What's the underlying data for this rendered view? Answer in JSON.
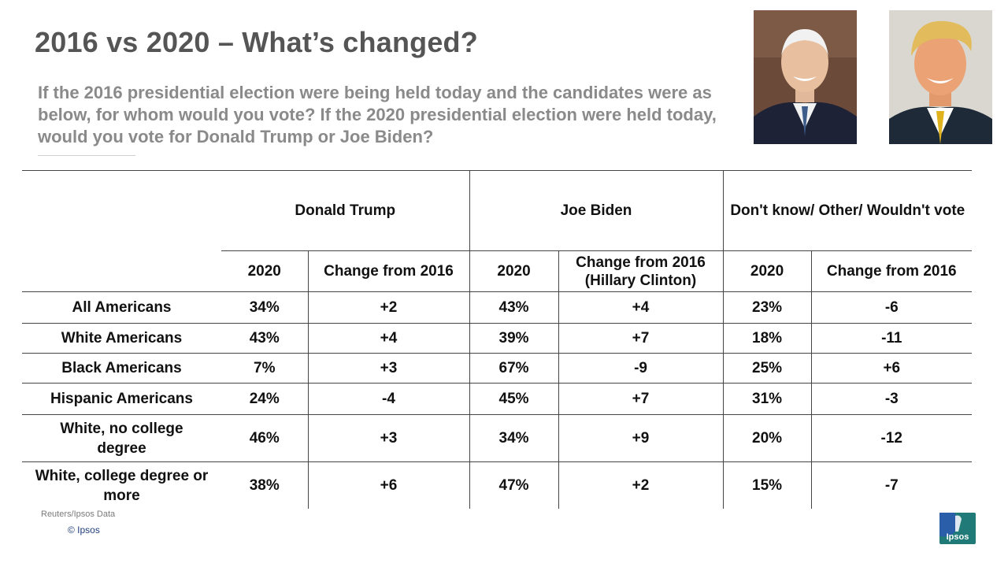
{
  "title": "2016 vs 2020 – What’s changed?",
  "subtitle": "If the 2016 presidential election were being held today and the candidates were as below, for whom would you vote? If the 2020 presidential election were held today, would you vote for Donald Trump or Joe Biden?",
  "photos": {
    "left_icon": "joe-biden-photo",
    "right_icon": "donald-trump-photo"
  },
  "table": {
    "groups": [
      "Donald Trump",
      "Joe Biden",
      "Don't know/ Other/ Wouldn't vote"
    ],
    "subheaders": [
      "2020",
      "Change from 2016",
      "2020",
      "Change from 2016 (Hillary  Clinton)",
      "2020",
      "Change from 2016"
    ],
    "rows": [
      {
        "label": "All Americans",
        "values": [
          "34%",
          "+2",
          "43%",
          "+4",
          "23%",
          "-6"
        ]
      },
      {
        "label": "White Americans",
        "values": [
          "43%",
          "+4",
          "39%",
          "+7",
          "18%",
          "-11"
        ]
      },
      {
        "label": "Black Americans",
        "values": [
          "7%",
          "+3",
          "67%",
          "-9",
          "25%",
          "+6"
        ]
      },
      {
        "label": "Hispanic Americans",
        "values": [
          "24%",
          "-4",
          "45%",
          "+7",
          "31%",
          "-3"
        ]
      },
      {
        "label": "White, no college degree",
        "values": [
          "46%",
          "+3",
          "34%",
          "+9",
          "20%",
          "-12"
        ]
      },
      {
        "label": "White, college degree or more",
        "values": [
          "38%",
          "+6",
          "47%",
          "+2",
          "15%",
          "-7"
        ]
      }
    ]
  },
  "footer": {
    "source": "Reuters/Ipsos Data",
    "copyright": "© Ipsos",
    "logo_text": "Ipsos"
  },
  "colors": {
    "all": "#0e5c56",
    "white": "#b5651d",
    "black": "#7a3b9c",
    "hispanic": "#1b2a4a",
    "white_no_college": "#293a6e",
    "logo": "#1f7a78"
  }
}
